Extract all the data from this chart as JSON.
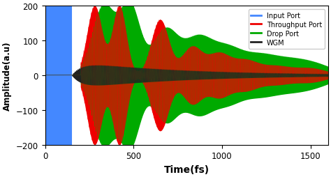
{
  "xlabel": "Time(fs)",
  "ylabel": "Amplitude(a.u)",
  "xlim": [
    0,
    1600
  ],
  "ylim": [
    -200,
    200
  ],
  "yticks": [
    -200,
    -100,
    0,
    100,
    200
  ],
  "xticks": [
    0,
    500,
    1000,
    1500
  ],
  "legend_labels": [
    "Input Port",
    "Throughput Port",
    "Drop Port",
    "WGM"
  ],
  "input_color": "#4488FF",
  "throughput_color": "#EE0000",
  "drop_color": "#00AA00",
  "wgm_color": "#222222",
  "figsize": [
    4.74,
    2.55
  ],
  "dpi": 100
}
